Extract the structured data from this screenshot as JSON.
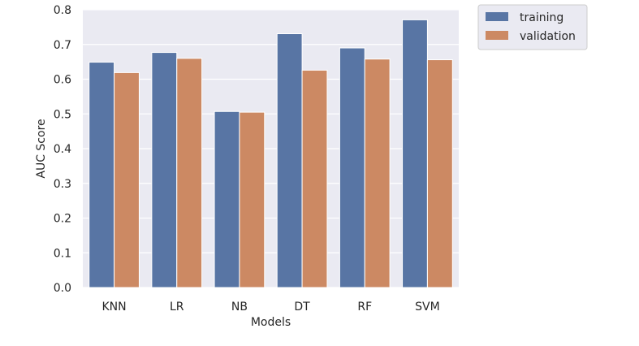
{
  "chart_data": {
    "type": "bar",
    "title": "",
    "xlabel": "Models",
    "ylabel": "AUC Score",
    "categories": [
      "KNN",
      "LR",
      "NB",
      "DT",
      "RF",
      "SVM"
    ],
    "series": [
      {
        "name": "training",
        "color": "#5875a4",
        "values": [
          0.649,
          0.677,
          0.507,
          0.731,
          0.69,
          0.771
        ]
      },
      {
        "name": "validation",
        "color": "#cc8963",
        "values": [
          0.619,
          0.66,
          0.505,
          0.626,
          0.658,
          0.656
        ]
      }
    ],
    "ylim": [
      0,
      0.8
    ],
    "yticks": [
      "0.0",
      "0.1",
      "0.2",
      "0.3",
      "0.4",
      "0.5",
      "0.6",
      "0.7",
      "0.8"
    ],
    "grid": true,
    "legend": "outside-top-right",
    "background": "#eaeaf2"
  }
}
